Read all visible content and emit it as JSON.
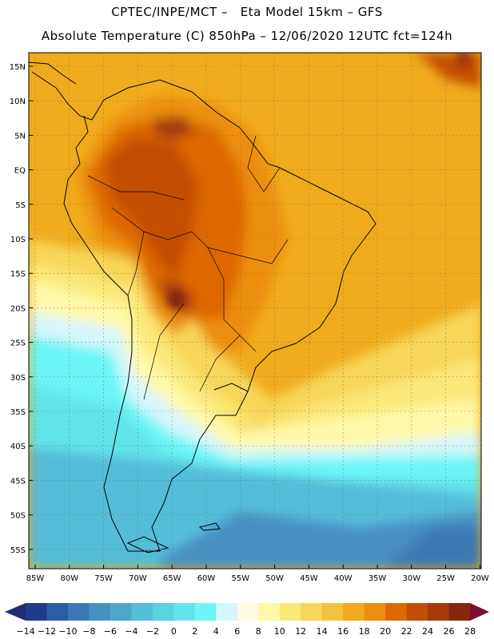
{
  "header": {
    "title_line1": "CPTEC/INPE/MCT –   Eta Model 15km – GFS",
    "title_line2": "Absolute Temperature (C) 850hPa – 12/06/2020 12UTC fct=124h"
  },
  "map": {
    "lat_labels": [
      "15N",
      "10N",
      "5N",
      "EQ",
      "5S",
      "10S",
      "15S",
      "20S",
      "25S",
      "30S",
      "35S",
      "40S",
      "45S",
      "50S",
      "55S"
    ],
    "lon_labels": [
      "85W",
      "80W",
      "75W",
      "70W",
      "65W",
      "60W",
      "55W",
      "50W",
      "45W",
      "40W",
      "35W",
      "30W",
      "25W",
      "20W"
    ]
  },
  "colorbar": {
    "labels": [
      "-14",
      "-12",
      "-10",
      "-8",
      "-6",
      "-4",
      "-2",
      "0",
      "2",
      "4",
      "6",
      "8",
      "10",
      "12",
      "14",
      "16",
      "18",
      "20",
      "22",
      "24",
      "26",
      "28"
    ],
    "colors": [
      "#1f3d8c",
      "#2a5ea5",
      "#3a78b6",
      "#4690c4",
      "#4ea6cf",
      "#55bdd8",
      "#5ad2e0",
      "#61e4ea",
      "#6cf6f8",
      "#d6f6fb",
      "#fffbe6",
      "#fff8a8",
      "#fce97a",
      "#f7d75a",
      "#f3c23d",
      "#f0ab1c",
      "#ec8e0d",
      "#df6805",
      "#c44e06",
      "#a63a0a",
      "#862810"
    ],
    "left_arrow_color": "#1f2f72",
    "right_arrow_color": "#7a0f2f"
  }
}
